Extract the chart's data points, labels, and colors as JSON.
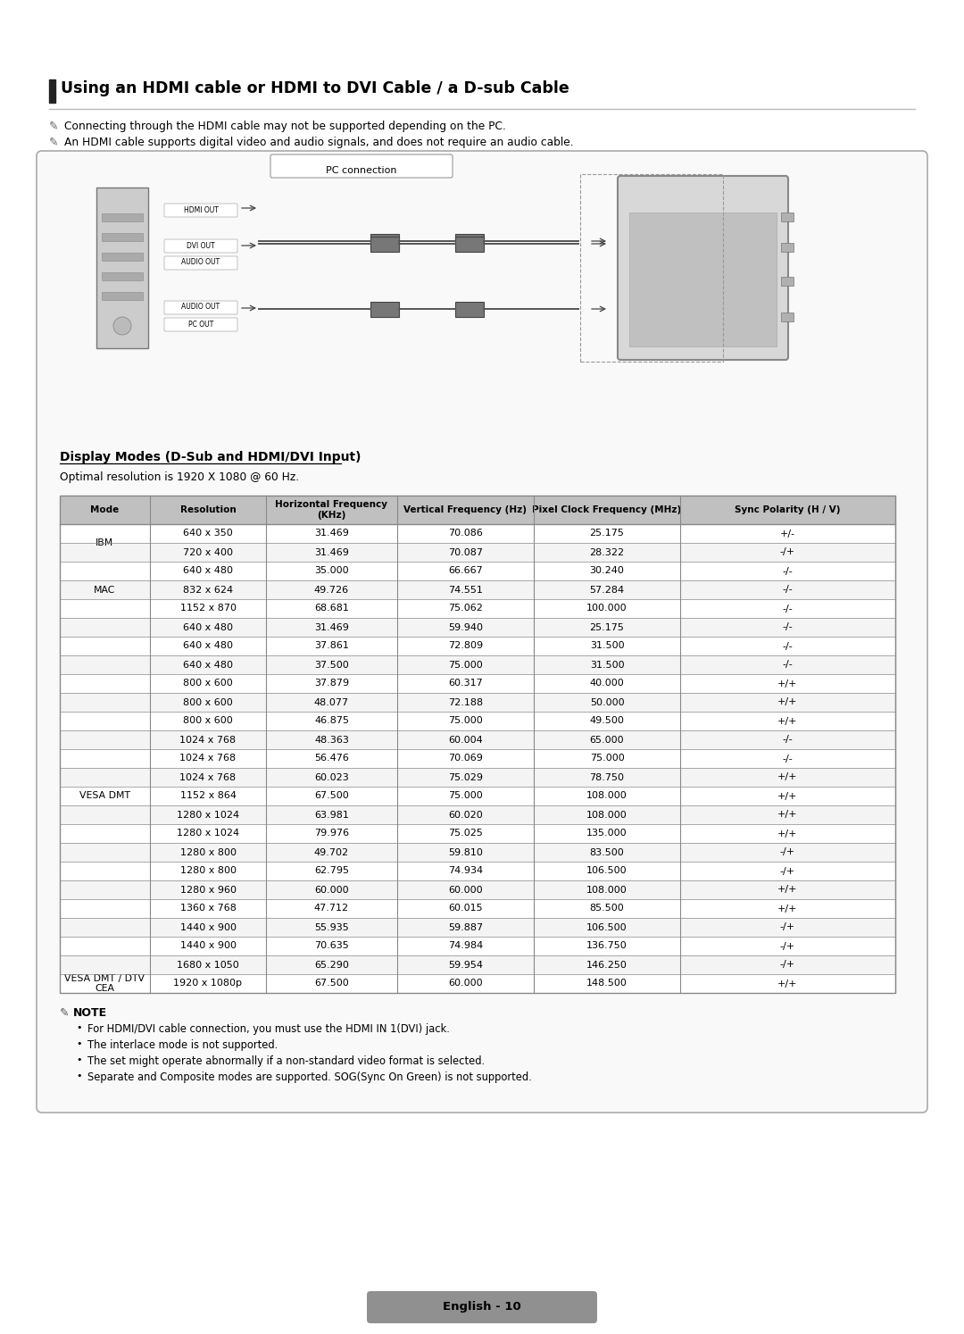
{
  "title": "Using an HDMI cable or HDMI to DVI Cable / a D-sub Cable",
  "note_line1": "Connecting through the HDMI cable may not be supported depending on the PC.",
  "note_line2": "An HDMI cable supports digital video and audio signals, and does not require an audio cable.",
  "pc_connection_label": "PC connection",
  "display_modes_title": "Display Modes (D-Sub and HDMI/DVI Input)",
  "optimal_resolution": "Optimal resolution is 1920 X 1080 @ 60 Hz.",
  "table_headers": [
    "Mode",
    "Resolution",
    "Horizontal Frequency\n(KHz)",
    "Vertical Frequency (Hz)",
    "Pixel Clock Frequency (MHz)",
    "Sync Polarity (H / V)"
  ],
  "table_data": [
    [
      "IBM",
      "640 x 350",
      "31.469",
      "70.086",
      "25.175",
      "+/-"
    ],
    [
      "",
      "720 x 400",
      "31.469",
      "70.087",
      "28.322",
      "-/+"
    ],
    [
      "MAC",
      "640 x 480",
      "35.000",
      "66.667",
      "30.240",
      "-/-"
    ],
    [
      "",
      "832 x 624",
      "49.726",
      "74.551",
      "57.284",
      "-/-"
    ],
    [
      "",
      "1152 x 870",
      "68.681",
      "75.062",
      "100.000",
      "-/-"
    ],
    [
      "VESA DMT",
      "640 x 480",
      "31.469",
      "59.940",
      "25.175",
      "-/-"
    ],
    [
      "",
      "640 x 480",
      "37.861",
      "72.809",
      "31.500",
      "-/-"
    ],
    [
      "",
      "640 x 480",
      "37.500",
      "75.000",
      "31.500",
      "-/-"
    ],
    [
      "",
      "800 x 600",
      "37.879",
      "60.317",
      "40.000",
      "+/+"
    ],
    [
      "",
      "800 x 600",
      "48.077",
      "72.188",
      "50.000",
      "+/+"
    ],
    [
      "",
      "800 x 600",
      "46.875",
      "75.000",
      "49.500",
      "+/+"
    ],
    [
      "",
      "1024 x 768",
      "48.363",
      "60.004",
      "65.000",
      "-/-"
    ],
    [
      "",
      "1024 x 768",
      "56.476",
      "70.069",
      "75.000",
      "-/-"
    ],
    [
      "",
      "1024 x 768",
      "60.023",
      "75.029",
      "78.750",
      "+/+"
    ],
    [
      "",
      "1152 x 864",
      "67.500",
      "75.000",
      "108.000",
      "+/+"
    ],
    [
      "",
      "1280 x 1024",
      "63.981",
      "60.020",
      "108.000",
      "+/+"
    ],
    [
      "",
      "1280 x 1024",
      "79.976",
      "75.025",
      "135.000",
      "+/+"
    ],
    [
      "",
      "1280 x 800",
      "49.702",
      "59.810",
      "83.500",
      "-/+"
    ],
    [
      "",
      "1280 x 800",
      "62.795",
      "74.934",
      "106.500",
      "-/+"
    ],
    [
      "",
      "1280 x 960",
      "60.000",
      "60.000",
      "108.000",
      "+/+"
    ],
    [
      "",
      "1360 x 768",
      "47.712",
      "60.015",
      "85.500",
      "+/+"
    ],
    [
      "",
      "1440 x 900",
      "55.935",
      "59.887",
      "106.500",
      "-/+"
    ],
    [
      "",
      "1440 x 900",
      "70.635",
      "74.984",
      "136.750",
      "-/+"
    ],
    [
      "",
      "1680 x 1050",
      "65.290",
      "59.954",
      "146.250",
      "-/+"
    ],
    [
      "VESA DMT / DTV\nCEA",
      "1920 x 1080p",
      "67.500",
      "60.000",
      "148.500",
      "+/+"
    ]
  ],
  "note_title": "NOTE",
  "note_bullets": [
    "For HDMI/DVI cable connection, you must use the HDMI IN 1(DVI) jack.",
    "The interlace mode is not supported.",
    "The set might operate abnormally if a non-standard video format is selected.",
    "Separate and Composite modes are supported. SOG(Sync On Green) is not supported."
  ],
  "footer": "English - 10",
  "bg_color": "#ffffff",
  "header_bg": "#c0c0c0",
  "table_border": "#888888",
  "title_bar_color": "#222222",
  "box_border": "#aaaaaa",
  "box_fill": "#f9f9f9"
}
